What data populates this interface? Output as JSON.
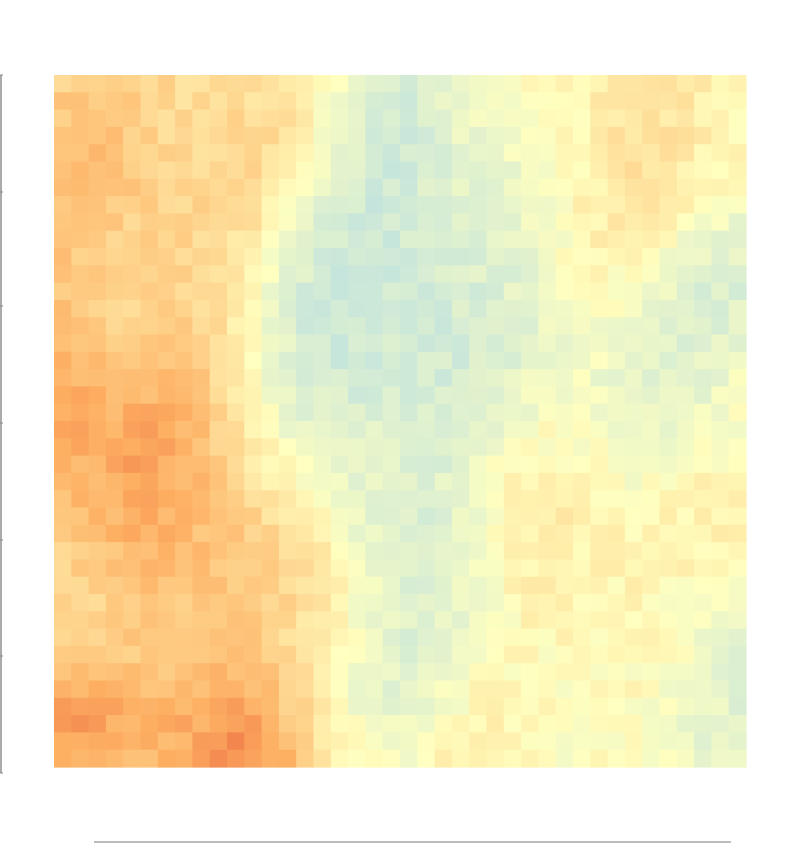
{
  "chart_data": {
    "type": "heatmap",
    "title": "",
    "xlabel": "",
    "ylabel": "",
    "grid": false,
    "legend": "colorbar-bottom",
    "colormap": "RdYlBu_r",
    "palette": [
      "#d7191c",
      "#fdae61",
      "#ffffbf",
      "#abd9e9",
      "#2c7bb6"
    ],
    "rows": 40,
    "cols": 40,
    "value_range": [
      0,
      1
    ],
    "field": {
      "base": 0.5,
      "anchors": [
        {
          "x": 0.05,
          "y": 0.47,
          "v": 0.95,
          "r": 0.1
        },
        {
          "x": 0.25,
          "y": 0.96,
          "v": 0.98,
          "r": 0.08
        },
        {
          "x": 0.03,
          "y": 0.92,
          "v": 0.9,
          "r": 0.07
        },
        {
          "x": 0.15,
          "y": 0.62,
          "v": 0.82,
          "r": 0.16
        },
        {
          "x": 0.1,
          "y": 0.15,
          "v": 0.78,
          "r": 0.15
        },
        {
          "x": 0.25,
          "y": 0.3,
          "v": 0.72,
          "r": 0.14
        },
        {
          "x": 0.3,
          "y": 0.8,
          "v": 0.8,
          "r": 0.12
        },
        {
          "x": 0.07,
          "y": 0.35,
          "v": 0.55,
          "r": 0.08
        },
        {
          "x": 0.1,
          "y": 0.8,
          "v": 0.52,
          "r": 0.07
        },
        {
          "x": 0.27,
          "y": 0.08,
          "v": 0.6,
          "r": 0.1
        },
        {
          "x": 0.45,
          "y": 0.4,
          "v": 0.18,
          "r": 0.14
        },
        {
          "x": 0.38,
          "y": 0.32,
          "v": 0.2,
          "r": 0.1
        },
        {
          "x": 0.55,
          "y": 0.12,
          "v": 0.2,
          "r": 0.12
        },
        {
          "x": 0.48,
          "y": 0.62,
          "v": 0.25,
          "r": 0.08
        },
        {
          "x": 0.55,
          "y": 0.78,
          "v": 0.3,
          "r": 0.1
        },
        {
          "x": 0.4,
          "y": 0.85,
          "v": 0.32,
          "r": 0.08
        },
        {
          "x": 0.85,
          "y": 0.42,
          "v": 0.35,
          "r": 0.12
        },
        {
          "x": 0.7,
          "y": 0.38,
          "v": 0.4,
          "r": 0.12
        },
        {
          "x": 0.97,
          "y": 0.3,
          "v": 0.3,
          "r": 0.06
        },
        {
          "x": 0.97,
          "y": 0.8,
          "v": 0.35,
          "r": 0.08
        },
        {
          "x": 0.92,
          "y": 0.95,
          "v": 0.38,
          "r": 0.07
        },
        {
          "x": 0.75,
          "y": 0.08,
          "v": 0.62,
          "r": 0.14
        },
        {
          "x": 0.8,
          "y": 0.22,
          "v": 0.6,
          "r": 0.12
        },
        {
          "x": 0.8,
          "y": 0.68,
          "v": 0.62,
          "r": 0.14
        },
        {
          "x": 0.7,
          "y": 0.9,
          "v": 0.55,
          "r": 0.1
        },
        {
          "x": 0.62,
          "y": 0.58,
          "v": 0.55,
          "r": 0.1
        }
      ]
    }
  }
}
